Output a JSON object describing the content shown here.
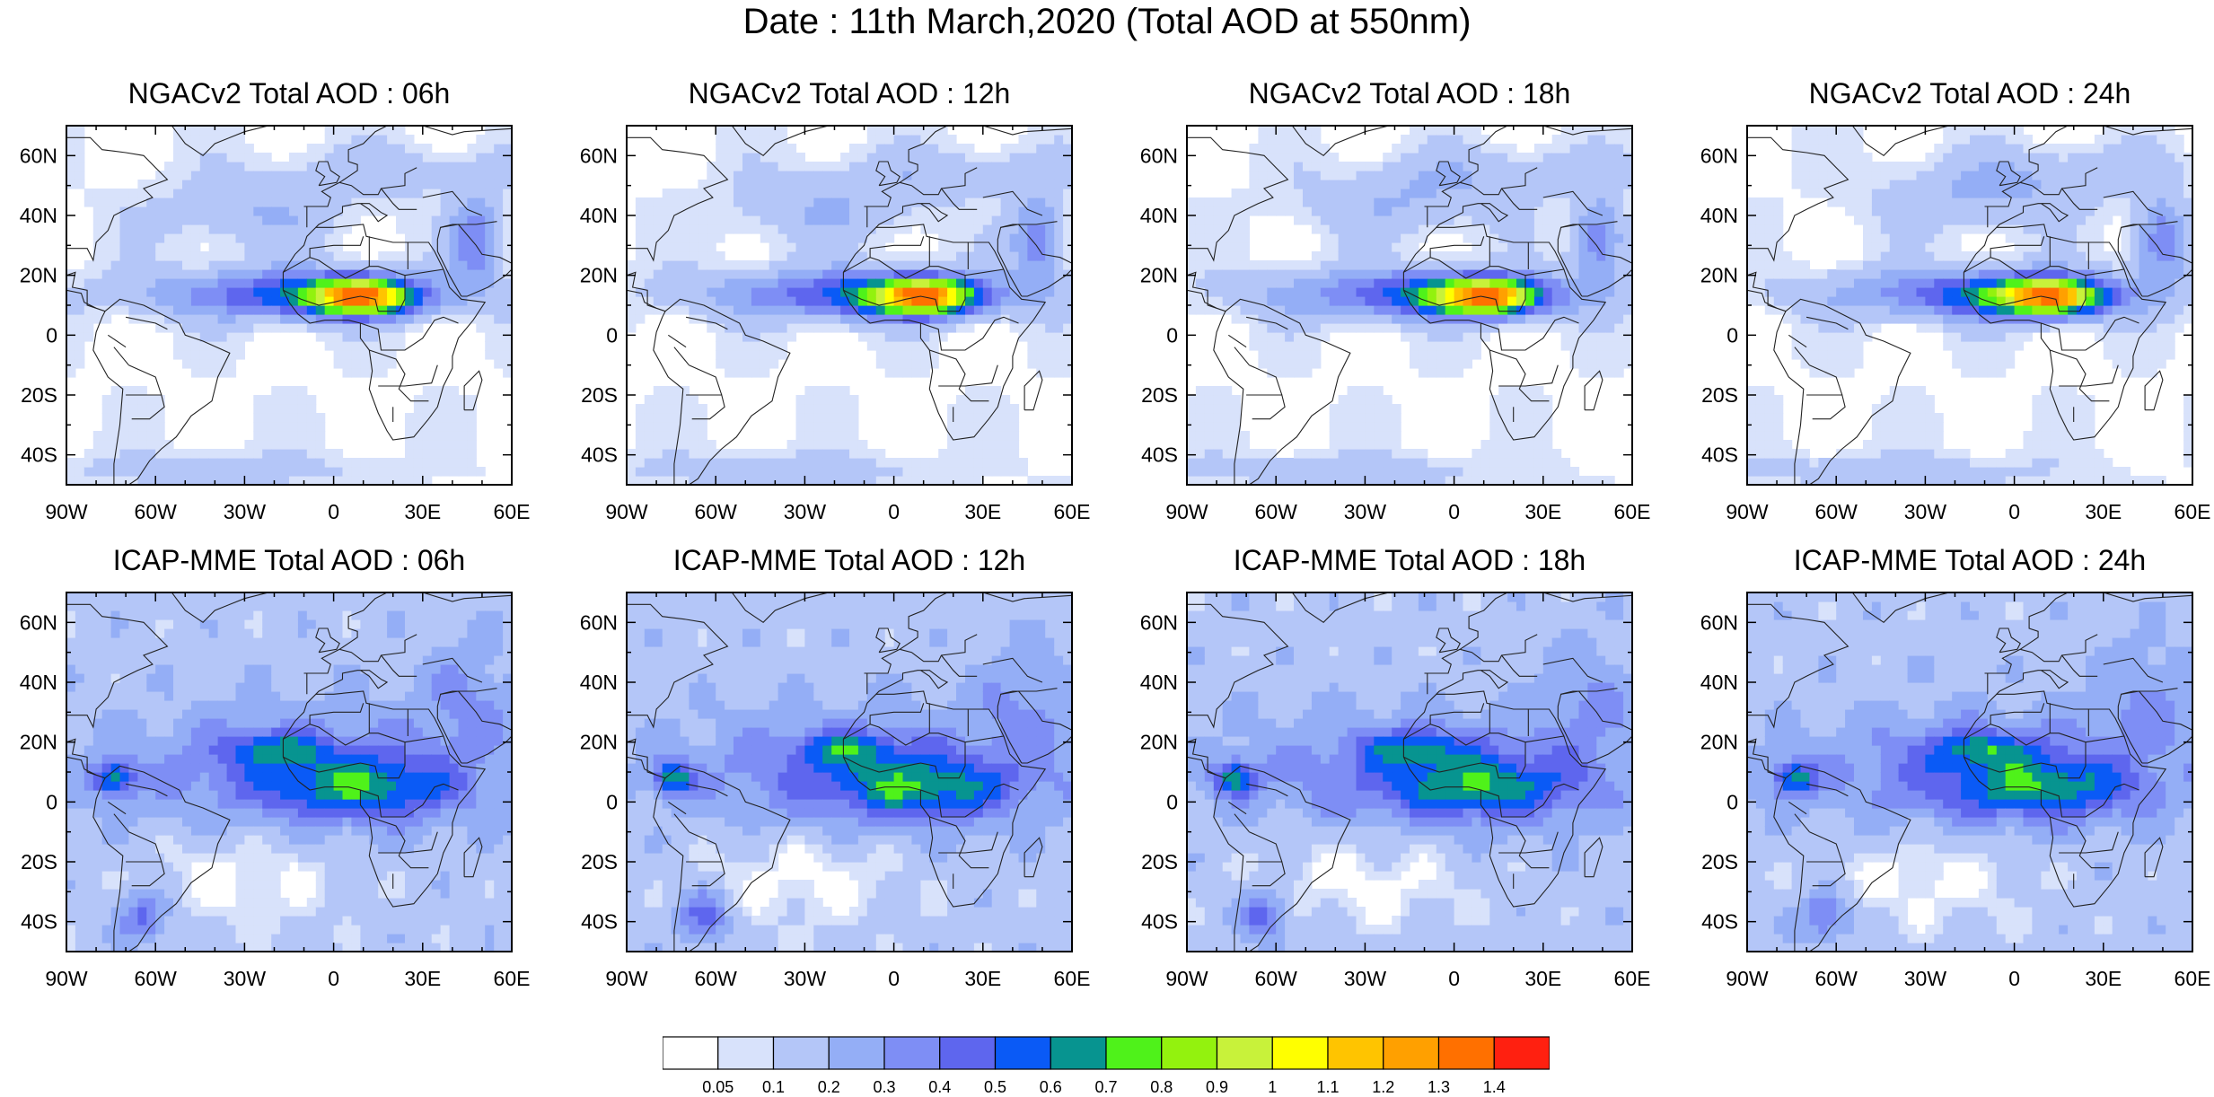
{
  "title": "Date : 11th March,2020 (Total AOD at 550nm)",
  "panels": [
    {
      "title": "NGACv2 Total AOD : 06h",
      "model": "ngac",
      "hour": "06h"
    },
    {
      "title": "NGACv2 Total AOD : 12h",
      "model": "ngac",
      "hour": "12h"
    },
    {
      "title": "NGACv2 Total AOD : 18h",
      "model": "ngac",
      "hour": "18h"
    },
    {
      "title": "NGACv2 Total AOD : 24h",
      "model": "ngac",
      "hour": "24h"
    },
    {
      "title": "ICAP-MME Total AOD : 06h",
      "model": "icap",
      "hour": "06h"
    },
    {
      "title": "ICAP-MME Total AOD : 12h",
      "model": "icap",
      "hour": "12h"
    },
    {
      "title": "ICAP-MME Total AOD : 18h",
      "model": "icap",
      "hour": "18h"
    },
    {
      "title": "ICAP-MME Total AOD : 24h",
      "model": "icap",
      "hour": "24h"
    }
  ],
  "map_extent": {
    "lon": [
      -90,
      60
    ],
    "lat": [
      -50,
      70
    ]
  },
  "lon_labels": [
    "90W",
    "60W",
    "30W",
    "0",
    "30E",
    "60E"
  ],
  "lat_labels": [
    "60N",
    "40N",
    "20N",
    "0",
    "20S",
    "40S"
  ],
  "colorbar": {
    "labels": [
      "0.05",
      "0.1",
      "0.2",
      "0.3",
      "0.4",
      "0.5",
      "0.6",
      "0.7",
      "0.8",
      "0.9",
      "1",
      "1.1",
      "1.2",
      "1.3",
      "1.4"
    ],
    "colors": [
      "#ffffff",
      "#d8e2fb",
      "#b4c6f8",
      "#94aef6",
      "#7e8ef5",
      "#5e66ee",
      "#0a5af6",
      "#079490",
      "#4ff21a",
      "#93f20e",
      "#c8f23a",
      "#ffff00",
      "#ffc400",
      "#ffa000",
      "#ff7000",
      "#ff2010"
    ]
  }
}
